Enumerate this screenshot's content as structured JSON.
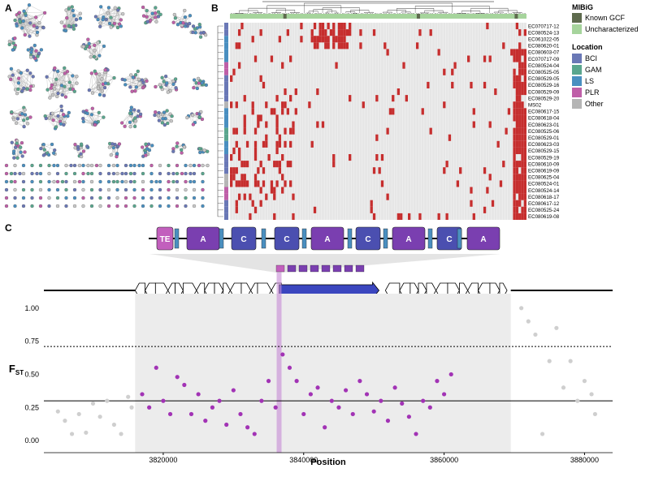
{
  "panels": {
    "a": "A",
    "b": "B",
    "c": "C"
  },
  "heatmap": {
    "rows": [
      "EC070717-12",
      "EC080524-13",
      "EC061022-05",
      "EC080620-01",
      "EC080603-07",
      "EC070717-09",
      "EC080524-04",
      "EC080525-05",
      "EC080529-05",
      "EC080529-16",
      "EC080529-09",
      "EC080529-20",
      "MS02",
      "EC080617-15",
      "EC080618-04",
      "EC080623-01",
      "EC080525-06",
      "EC080529-01",
      "EC080623-03",
      "EC080529-15",
      "EC080529-19",
      "EC080610-09",
      "EC080619-09",
      "EC080625-04",
      "EC080524-01",
      "EC080524-14",
      "EC080618-17",
      "EC080617-12",
      "EC080525-24",
      "EC080619-08"
    ],
    "row_locations": [
      "BCI",
      "BCI",
      "LS",
      "LS",
      "LS",
      "LS",
      "PLR",
      "PLR",
      "BCI",
      "BCI",
      "BCI",
      "BCI",
      "Other",
      "LS",
      "LS",
      "LS",
      "GAM",
      "GAM",
      "LS",
      "LS",
      "BCI",
      "BCI",
      "BCI",
      "Other",
      "Other",
      "PLR",
      "PLR",
      "BCI",
      "BCI",
      "BCI"
    ],
    "cell_present_color": "#c62e2e",
    "cell_absent_color": "#e6e6e6"
  },
  "legend": {
    "mibig_title": "MIBiG",
    "mibig": [
      {
        "label": "Known GCF",
        "color": "#5e6b4e"
      },
      {
        "label": "Uncharacterized",
        "color": "#a6d49c"
      }
    ],
    "location_title": "Location",
    "location": [
      {
        "label": "BCI",
        "color": "#6a78b6"
      },
      {
        "label": "GAM",
        "color": "#5aa68e"
      },
      {
        "label": "LS",
        "color": "#4a8fc0"
      },
      {
        "label": "PLR",
        "color": "#bf5fa8"
      },
      {
        "label": "Other",
        "color": "#b5b5b5"
      }
    ]
  },
  "domains": [
    {
      "label": "TE",
      "color": "#c25fbd"
    },
    {
      "label": "A",
      "color": "#7a3fb0"
    },
    {
      "label": "C",
      "color": "#4b4fb0"
    },
    {
      "label": "C",
      "color": "#4b4fb0"
    },
    {
      "label": "A",
      "color": "#7a3fb0"
    },
    {
      "label": "C",
      "color": "#4b4fb0"
    },
    {
      "label": "A",
      "color": "#7a3fb0"
    },
    {
      "label": "C",
      "color": "#4b4fb0"
    },
    {
      "label": "A",
      "color": "#7a3fb0"
    }
  ],
  "chart_data": {
    "type": "scatter",
    "xlabel": "Position",
    "ylabel": "F",
    "ylabel_subscript": "ST",
    "xlim": [
      3803000,
      3884000
    ],
    "ylim": [
      -0.03,
      1.06
    ],
    "x_ticks": [
      "3820000",
      "3840000",
      "3860000",
      "3880000"
    ],
    "y_ticks": [
      "0.00",
      "0.25",
      "0.50",
      "0.75",
      "1.00"
    ],
    "region_start": 3816000,
    "region_end": 3869500,
    "highlight_position": 3836500,
    "hline_solid": 0.3,
    "hline_dotted": 0.71,
    "inside_color": "#a233b5",
    "outside_color": "#cfcfcf",
    "series": [
      {
        "values": [
          [
            3805000,
            0.22
          ],
          [
            3806000,
            0.15
          ],
          [
            3807000,
            0.05
          ],
          [
            3808000,
            0.2
          ],
          [
            3809000,
            0.06
          ],
          [
            3810000,
            0.28
          ],
          [
            3811000,
            0.18
          ],
          [
            3812000,
            0.3
          ],
          [
            3813000,
            0.12
          ],
          [
            3814000,
            0.05
          ],
          [
            3815000,
            0.33
          ],
          [
            3815500,
            0.25
          ],
          [
            3871000,
            1.0
          ],
          [
            3872000,
            0.9
          ],
          [
            3873000,
            0.8
          ],
          [
            3874000,
            0.05
          ],
          [
            3875000,
            0.6
          ],
          [
            3876000,
            0.85
          ],
          [
            3877000,
            0.4
          ],
          [
            3878000,
            0.6
          ],
          [
            3879000,
            0.3
          ],
          [
            3880000,
            0.45
          ],
          [
            3881000,
            0.35
          ],
          [
            3881500,
            0.2
          ]
        ]
      },
      {
        "values": [
          [
            3817000,
            0.35
          ],
          [
            3818000,
            0.25
          ],
          [
            3819000,
            0.55
          ],
          [
            3820000,
            0.3
          ],
          [
            3821000,
            0.2
          ],
          [
            3822000,
            0.48
          ],
          [
            3823000,
            0.42
          ],
          [
            3824000,
            0.2
          ],
          [
            3825000,
            0.35
          ],
          [
            3826000,
            0.15
          ],
          [
            3827000,
            0.25
          ],
          [
            3828000,
            0.3
          ],
          [
            3829000,
            0.12
          ],
          [
            3830000,
            0.38
          ],
          [
            3831000,
            0.2
          ],
          [
            3832000,
            0.1
          ],
          [
            3833000,
            0.05
          ],
          [
            3834000,
            0.3
          ],
          [
            3835000,
            0.45
          ],
          [
            3836000,
            0.25
          ],
          [
            3837000,
            0.65
          ],
          [
            3838000,
            0.55
          ],
          [
            3839000,
            0.45
          ],
          [
            3840000,
            0.2
          ],
          [
            3841000,
            0.35
          ],
          [
            3842000,
            0.4
          ],
          [
            3843000,
            0.1
          ],
          [
            3844000,
            0.3
          ],
          [
            3845000,
            0.25
          ],
          [
            3846000,
            0.38
          ],
          [
            3847000,
            0.2
          ],
          [
            3848000,
            0.45
          ],
          [
            3849000,
            0.35
          ],
          [
            3850000,
            0.22
          ],
          [
            3851000,
            0.3
          ],
          [
            3852000,
            0.15
          ],
          [
            3853000,
            0.4
          ],
          [
            3854000,
            0.28
          ],
          [
            3855000,
            0.18
          ],
          [
            3856000,
            0.05
          ],
          [
            3857000,
            0.3
          ],
          [
            3858000,
            0.25
          ],
          [
            3859000,
            0.45
          ],
          [
            3860000,
            0.35
          ],
          [
            3861000,
            0.5
          ]
        ]
      }
    ]
  }
}
